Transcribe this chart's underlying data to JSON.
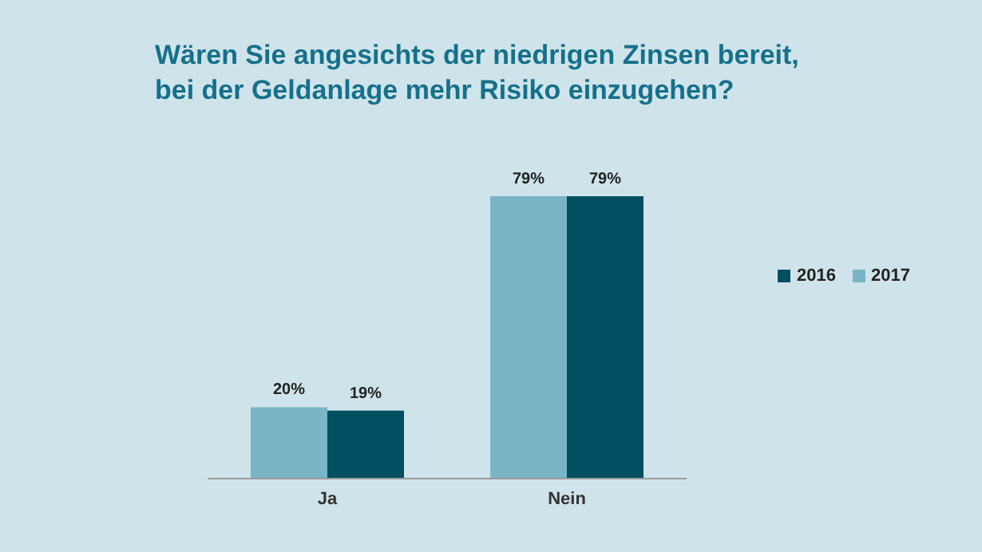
{
  "chart_data": {
    "type": "bar",
    "title": "Wären Sie angesichts der niedrigen Zinsen bereit, bei der Geldanlage mehr Risiko einzugehen?",
    "categories": [
      "Ja",
      "Nein"
    ],
    "series": [
      {
        "name": "2017",
        "color": "#7ab4c7",
        "values": [
          20,
          79
        ],
        "value_labels": [
          "20%",
          "79%"
        ]
      },
      {
        "name": "2016",
        "color": "#004f61",
        "values": [
          19,
          79
        ],
        "value_labels": [
          "19%",
          "79%"
        ]
      }
    ],
    "legend": "right"
  }
}
